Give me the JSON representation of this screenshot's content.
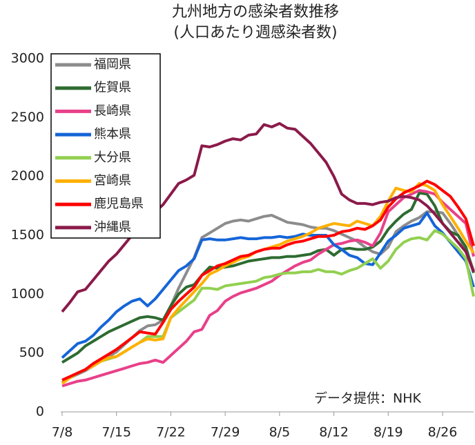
{
  "chart_data": {
    "type": "line",
    "title": "九州地方の感染者数推移",
    "subtitle": "(人口あたり週感染者数)",
    "annotation": "データ提供：NHK",
    "categories": [
      "7/8",
      null,
      null,
      null,
      null,
      null,
      null,
      "7/15",
      null,
      null,
      null,
      null,
      null,
      null,
      "7/22",
      null,
      null,
      null,
      null,
      null,
      null,
      "7/29",
      null,
      null,
      null,
      null,
      null,
      null,
      "8/5",
      null,
      null,
      null,
      null,
      null,
      null,
      "8/12",
      null,
      null,
      null,
      null,
      null,
      null,
      "8/19",
      null,
      null,
      null,
      null,
      null,
      null,
      "8/26",
      null,
      null,
      null,
      null
    ],
    "ylim": [
      0,
      3000
    ],
    "yticks": [
      0,
      500,
      1000,
      1500,
      2000,
      2500,
      3000
    ],
    "grid": false,
    "legend": "upper left",
    "series": [
      {
        "name": "福岡県",
        "color": "#8c8c8c",
        "values": [
          250,
          290,
          320,
          350,
          390,
          430,
          470,
          510,
          570,
          630,
          690,
          730,
          740,
          780,
          900,
          1050,
          1180,
          1310,
          1480,
          1520,
          1560,
          1600,
          1620,
          1630,
          1620,
          1640,
          1660,
          1670,
          1640,
          1610,
          1600,
          1590,
          1570,
          1560,
          1560,
          1540,
          1510,
          1480,
          1450,
          1400,
          1360,
          1340,
          1400,
          1530,
          1580,
          1620,
          1650,
          1700,
          1700,
          1690,
          1600,
          1500,
          1380,
          1200
        ]
      },
      {
        "name": "佐賀県",
        "color": "#2e6b30",
        "values": [
          420,
          460,
          500,
          560,
          600,
          640,
          680,
          710,
          740,
          770,
          800,
          810,
          800,
          780,
          900,
          1000,
          1060,
          1080,
          1160,
          1230,
          1220,
          1230,
          1240,
          1260,
          1280,
          1290,
          1300,
          1310,
          1310,
          1320,
          1320,
          1330,
          1340,
          1370,
          1380,
          1330,
          1380,
          1390,
          1380,
          1380,
          1400,
          1450,
          1550,
          1620,
          1680,
          1720,
          1860,
          1850,
          1750,
          1600,
          1530,
          1500,
          1400,
          1180
        ]
      },
      {
        "name": "長崎県",
        "color": "#e8408a",
        "values": [
          220,
          240,
          260,
          270,
          290,
          310,
          330,
          350,
          370,
          390,
          410,
          420,
          440,
          420,
          480,
          540,
          600,
          680,
          700,
          820,
          860,
          940,
          980,
          1010,
          1030,
          1050,
          1080,
          1110,
          1160,
          1200,
          1240,
          1270,
          1290,
          1340,
          1380,
          1420,
          1430,
          1450,
          1460,
          1440,
          1410,
          1520,
          1700,
          1760,
          1820,
          1850,
          1880,
          1870,
          1850,
          1780,
          1720,
          1660,
          1600,
          1320
        ]
      },
      {
        "name": "熊本県",
        "color": "#1565d8",
        "values": [
          460,
          520,
          580,
          600,
          650,
          720,
          780,
          850,
          900,
          940,
          960,
          900,
          960,
          1040,
          1120,
          1200,
          1240,
          1300,
          1460,
          1470,
          1460,
          1460,
          1470,
          1480,
          1470,
          1470,
          1480,
          1480,
          1490,
          1480,
          1490,
          1510,
          1500,
          1500,
          1500,
          1420,
          1380,
          1330,
          1310,
          1260,
          1250,
          1350,
          1450,
          1500,
          1560,
          1580,
          1600,
          1690,
          1580,
          1520,
          1440,
          1360,
          1280,
          1060
        ]
      },
      {
        "name": "大分県",
        "color": "#92d050",
        "values": [
          250,
          290,
          330,
          360,
          390,
          430,
          450,
          470,
          510,
          550,
          590,
          640,
          640,
          640,
          800,
          850,
          900,
          950,
          1050,
          1050,
          1040,
          1070,
          1080,
          1090,
          1100,
          1110,
          1140,
          1150,
          1170,
          1180,
          1180,
          1190,
          1190,
          1210,
          1190,
          1190,
          1170,
          1200,
          1220,
          1260,
          1300,
          1220,
          1280,
          1380,
          1440,
          1470,
          1480,
          1460,
          1540,
          1510,
          1450,
          1390,
          1300,
          980
        ]
      },
      {
        "name": "宮崎県",
        "color": "#ffb000",
        "values": [
          240,
          290,
          330,
          360,
          390,
          430,
          460,
          470,
          510,
          550,
          590,
          620,
          610,
          620,
          800,
          880,
          950,
          1020,
          1090,
          1170,
          1200,
          1240,
          1270,
          1300,
          1320,
          1360,
          1380,
          1400,
          1420,
          1450,
          1470,
          1490,
          1520,
          1560,
          1580,
          1600,
          1590,
          1580,
          1620,
          1600,
          1580,
          1660,
          1790,
          1900,
          1880,
          1870,
          1940,
          1920,
          1880,
          1760,
          1660,
          1560,
          1450,
          1350
        ]
      },
      {
        "name": "鹿児島県",
        "color": "#ff0000",
        "values": [
          270,
          300,
          330,
          360,
          410,
          450,
          490,
          530,
          580,
          630,
          680,
          670,
          660,
          760,
          870,
          940,
          1000,
          1060,
          1160,
          1200,
          1240,
          1260,
          1290,
          1320,
          1330,
          1360,
          1380,
          1390,
          1390,
          1420,
          1440,
          1450,
          1470,
          1490,
          1490,
          1500,
          1530,
          1540,
          1560,
          1550,
          1580,
          1630,
          1740,
          1810,
          1860,
          1890,
          1920,
          1960,
          1930,
          1880,
          1830,
          1740,
          1640,
          1410
        ]
      },
      {
        "name": "沖縄県",
        "color": "#8b1a4a",
        "values": [
          850,
          930,
          1020,
          1040,
          1120,
          1200,
          1280,
          1340,
          1420,
          1500,
          1560,
          1620,
          1700,
          1760,
          1850,
          1940,
          1970,
          2010,
          2260,
          2250,
          2270,
          2300,
          2320,
          2310,
          2350,
          2360,
          2440,
          2420,
          2450,
          2410,
          2400,
          2340,
          2280,
          2200,
          2120,
          2000,
          1850,
          1800,
          1770,
          1770,
          1760,
          1780,
          1790,
          1820,
          1830,
          1820,
          1800,
          1750,
          1680,
          1600,
          1520,
          1440,
          1360,
          1190
        ]
      }
    ]
  }
}
